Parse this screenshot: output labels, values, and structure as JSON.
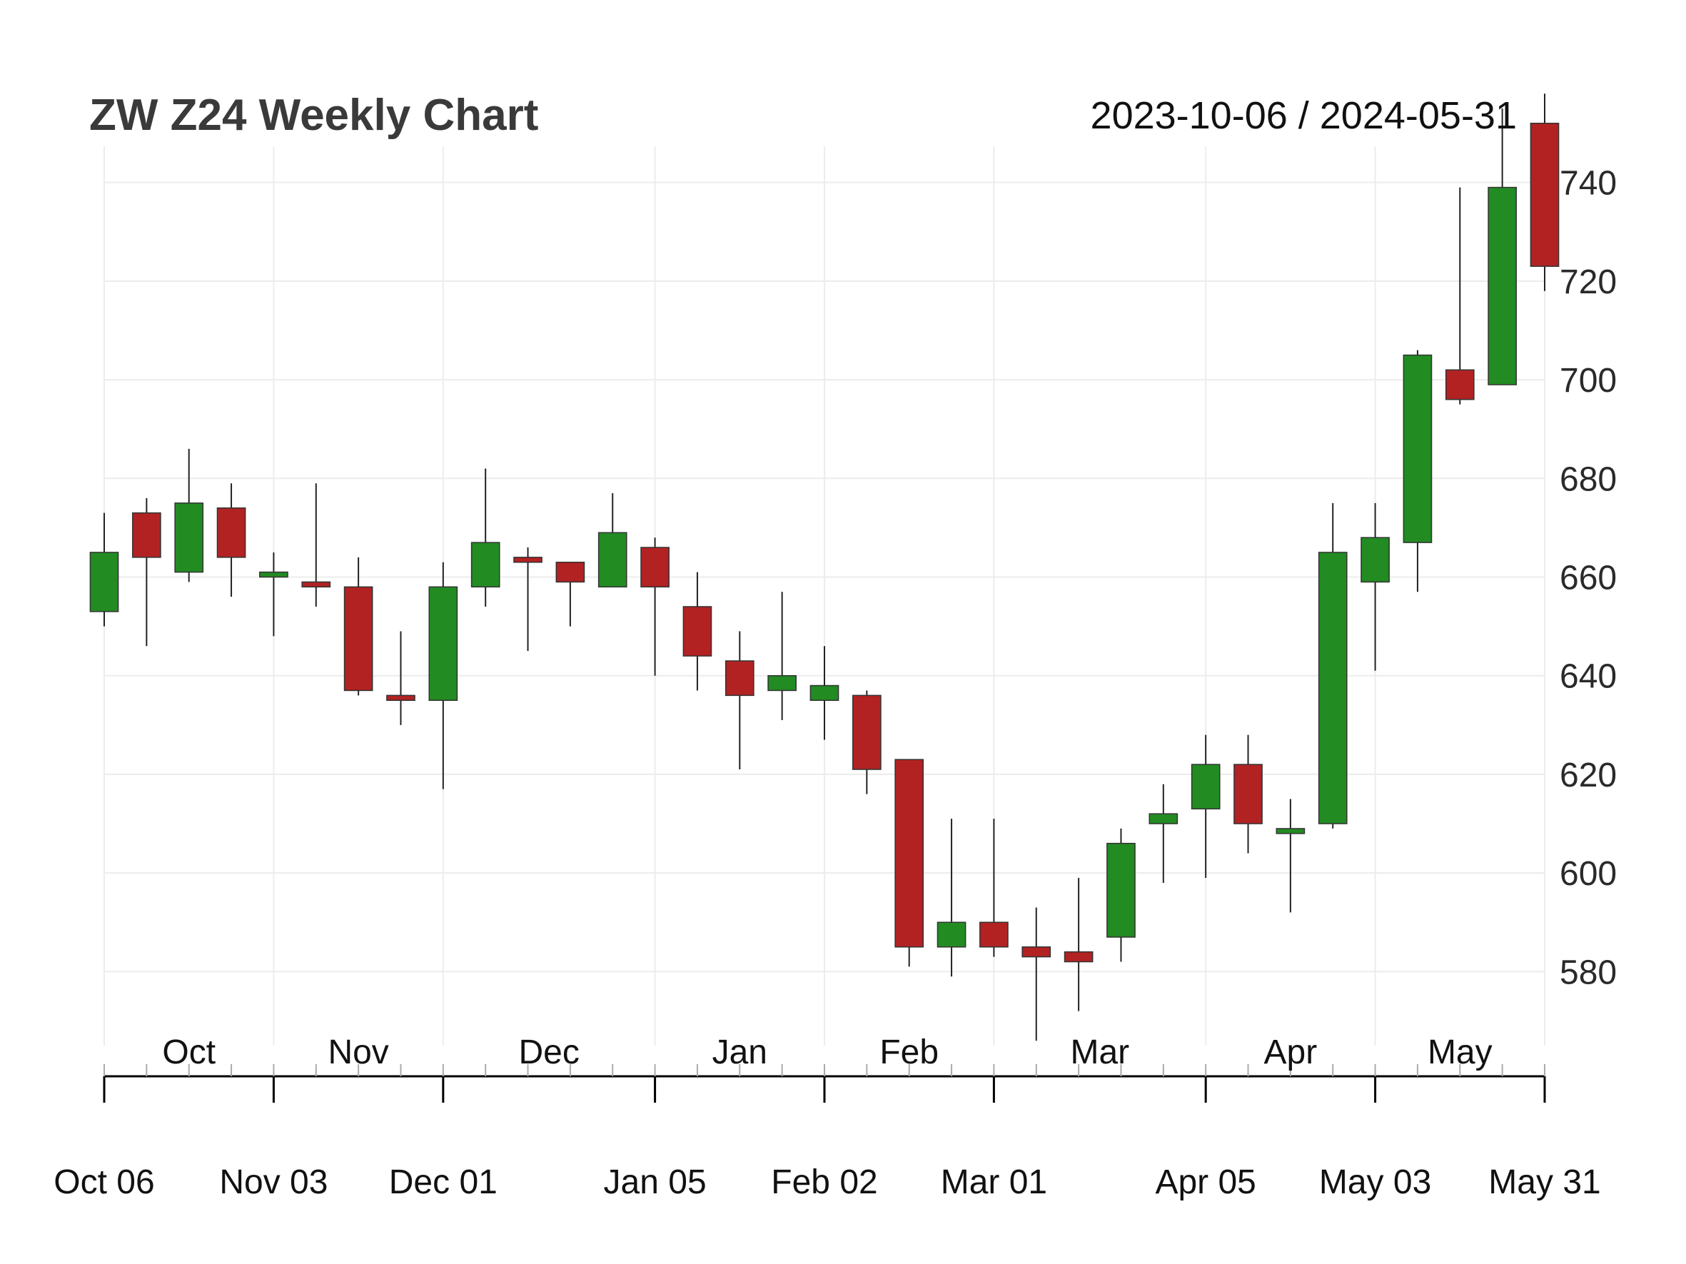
{
  "chart_data": {
    "type": "candlestick",
    "title": "ZW Z24 Weekly Chart",
    "date_range": "2023-10-06 / 2024-05-31",
    "ylim": [
      565,
      755
    ],
    "y_ticks": [
      580,
      600,
      620,
      640,
      660,
      680,
      700,
      720,
      740
    ],
    "grid": true,
    "up_color": "#228b22",
    "down_color": "#b22222",
    "month_labels": [
      {
        "label": "Oct",
        "index": 2
      },
      {
        "label": "Nov",
        "index": 6
      },
      {
        "label": "Dec",
        "index": 10.5
      },
      {
        "label": "Jan",
        "index": 15
      },
      {
        "label": "Feb",
        "index": 19
      },
      {
        "label": "Mar",
        "index": 23.5
      },
      {
        "label": "Apr",
        "index": 28
      },
      {
        "label": "May",
        "index": 32
      }
    ],
    "date_labels": [
      {
        "label": "Oct 06",
        "index": 0
      },
      {
        "label": "Nov 03",
        "index": 4
      },
      {
        "label": "Dec 01",
        "index": 8
      },
      {
        "label": "Jan 05",
        "index": 13
      },
      {
        "label": "Feb 02",
        "index": 17
      },
      {
        "label": "Mar 01",
        "index": 21
      },
      {
        "label": "Apr 05",
        "index": 26
      },
      {
        "label": "May 03",
        "index": 30
      },
      {
        "label": "May 31",
        "index": 34
      }
    ],
    "candles": [
      {
        "date": "2023-10-06",
        "open": 653,
        "high": 673,
        "low": 650,
        "close": 665
      },
      {
        "date": "2023-10-13",
        "open": 673,
        "high": 676,
        "low": 646,
        "close": 664
      },
      {
        "date": "2023-10-20",
        "open": 661,
        "high": 686,
        "low": 659,
        "close": 675
      },
      {
        "date": "2023-10-27",
        "open": 674,
        "high": 679,
        "low": 656,
        "close": 664
      },
      {
        "date": "2023-11-03",
        "open": 660,
        "high": 665,
        "low": 648,
        "close": 661
      },
      {
        "date": "2023-11-10",
        "open": 659,
        "high": 679,
        "low": 654,
        "close": 658
      },
      {
        "date": "2023-11-17",
        "open": 658,
        "high": 664,
        "low": 636,
        "close": 637
      },
      {
        "date": "2023-11-24",
        "open": 636,
        "high": 649,
        "low": 630,
        "close": 635
      },
      {
        "date": "2023-12-01",
        "open": 635,
        "high": 663,
        "low": 617,
        "close": 658
      },
      {
        "date": "2023-12-08",
        "open": 658,
        "high": 682,
        "low": 654,
        "close": 667
      },
      {
        "date": "2023-12-15",
        "open": 664,
        "high": 666,
        "low": 645,
        "close": 663
      },
      {
        "date": "2023-12-22",
        "open": 663,
        "high": 663,
        "low": 650,
        "close": 659
      },
      {
        "date": "2023-12-29",
        "open": 658,
        "high": 677,
        "low": 658,
        "close": 669
      },
      {
        "date": "2024-01-05",
        "open": 666,
        "high": 668,
        "low": 640,
        "close": 658
      },
      {
        "date": "2024-01-12",
        "open": 654,
        "high": 661,
        "low": 637,
        "close": 644
      },
      {
        "date": "2024-01-19",
        "open": 643,
        "high": 649,
        "low": 621,
        "close": 636
      },
      {
        "date": "2024-01-26",
        "open": 637,
        "high": 657,
        "low": 631,
        "close": 640
      },
      {
        "date": "2024-02-02",
        "open": 635,
        "high": 646,
        "low": 627,
        "close": 638
      },
      {
        "date": "2024-02-09",
        "open": 636,
        "high": 637,
        "low": 616,
        "close": 621
      },
      {
        "date": "2024-02-16",
        "open": 623,
        "high": 623,
        "low": 581,
        "close": 585
      },
      {
        "date": "2024-02-23",
        "open": 585,
        "high": 611,
        "low": 579,
        "close": 590
      },
      {
        "date": "2024-03-01",
        "open": 590,
        "high": 611,
        "low": 583,
        "close": 585
      },
      {
        "date": "2024-03-08",
        "open": 585,
        "high": 593,
        "low": 566,
        "close": 583
      },
      {
        "date": "2024-03-15",
        "open": 584,
        "high": 599,
        "low": 572,
        "close": 582
      },
      {
        "date": "2024-03-22",
        "open": 587,
        "high": 609,
        "low": 582,
        "close": 606
      },
      {
        "date": "2024-03-29",
        "open": 610,
        "high": 618,
        "low": 598,
        "close": 612
      },
      {
        "date": "2024-04-05",
        "open": 613,
        "high": 628,
        "low": 599,
        "close": 622
      },
      {
        "date": "2024-04-12",
        "open": 622,
        "high": 628,
        "low": 604,
        "close": 610
      },
      {
        "date": "2024-04-19",
        "open": 608,
        "high": 615,
        "low": 592,
        "close": 609
      },
      {
        "date": "2024-04-26",
        "open": 610,
        "high": 675,
        "low": 609,
        "close": 665
      },
      {
        "date": "2024-05-03",
        "open": 659,
        "high": 675,
        "low": 641,
        "close": 668
      },
      {
        "date": "2024-05-10",
        "open": 667,
        "high": 706,
        "low": 657,
        "close": 705
      },
      {
        "date": "2024-05-17",
        "open": 702,
        "high": 739,
        "low": 695,
        "close": 696
      },
      {
        "date": "2024-05-24",
        "open": 699,
        "high": 755,
        "low": 699,
        "close": 739
      },
      {
        "date": "2024-05-31",
        "open": 752,
        "high": 758,
        "low": 718,
        "close": 723
      }
    ]
  }
}
